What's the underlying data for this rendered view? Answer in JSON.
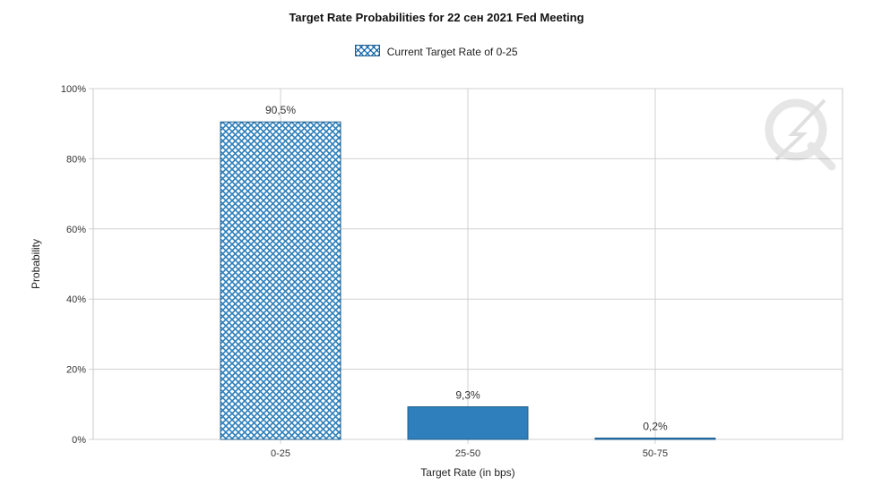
{
  "chart_data": {
    "type": "bar",
    "title": "Target Rate Probabilities for 22 сен 2021 Fed Meeting",
    "legend": [
      "Current Target Rate of 0-25"
    ],
    "legend_position": "top-center",
    "xlabel": "Target Rate (in bps)",
    "ylabel": "Probability",
    "categories": [
      "0-25",
      "25-50",
      "50-75"
    ],
    "values": [
      90.5,
      9.3,
      0.2
    ],
    "data_labels": [
      "90,5%",
      "9,3%",
      "0,2%"
    ],
    "current_category": "0-25",
    "ylim": [
      0,
      100
    ],
    "yticks": [
      "0%",
      "20%",
      "40%",
      "60%",
      "80%",
      "100%"
    ],
    "grid": true,
    "colors": {
      "bar": "#2e7fbb",
      "bar_dark": "#1f5f8f",
      "hatch_bg": "#ffffff",
      "grid": "#d0d0d0"
    }
  },
  "watermark": {
    "icon": "lightning-q-logo-icon"
  }
}
